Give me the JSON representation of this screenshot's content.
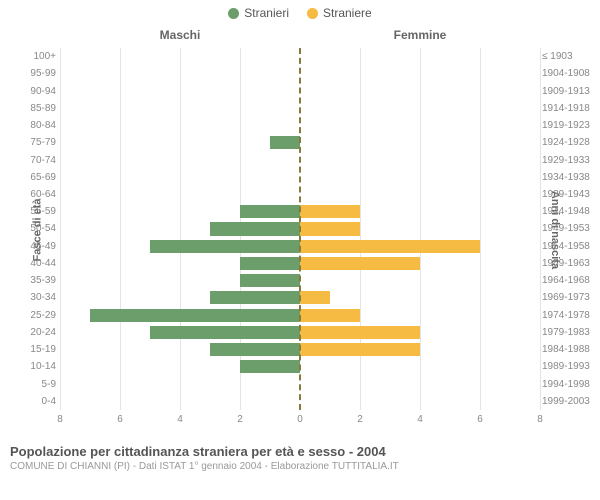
{
  "legend": {
    "male": {
      "label": "Stranieri",
      "color": "#6b9e6b"
    },
    "female": {
      "label": "Straniere",
      "color": "#f6bb42"
    }
  },
  "headers": {
    "left": "Maschi",
    "right": "Femmine"
  },
  "axes": {
    "left_label": "Fasce di età",
    "right_label": "Anni di nascita",
    "x_max": 8,
    "x_ticks_left": [
      8,
      6,
      4,
      2,
      0
    ],
    "x_ticks_right": [
      0,
      2,
      4,
      6,
      8
    ]
  },
  "grid_color": "#e4e4e4",
  "center_line_color": "#8a7a3a",
  "background": "#ffffff",
  "rows": [
    {
      "age": "100+",
      "birth": "≤ 1903",
      "m": 0,
      "f": 0
    },
    {
      "age": "95-99",
      "birth": "1904-1908",
      "m": 0,
      "f": 0
    },
    {
      "age": "90-94",
      "birth": "1909-1913",
      "m": 0,
      "f": 0
    },
    {
      "age": "85-89",
      "birth": "1914-1918",
      "m": 0,
      "f": 0
    },
    {
      "age": "80-84",
      "birth": "1919-1923",
      "m": 0,
      "f": 0
    },
    {
      "age": "75-79",
      "birth": "1924-1928",
      "m": 1,
      "f": 0
    },
    {
      "age": "70-74",
      "birth": "1929-1933",
      "m": 0,
      "f": 0
    },
    {
      "age": "65-69",
      "birth": "1934-1938",
      "m": 0,
      "f": 0
    },
    {
      "age": "60-64",
      "birth": "1939-1943",
      "m": 0,
      "f": 0
    },
    {
      "age": "55-59",
      "birth": "1944-1948",
      "m": 2,
      "f": 2
    },
    {
      "age": "50-54",
      "birth": "1949-1953",
      "m": 3,
      "f": 2
    },
    {
      "age": "45-49",
      "birth": "1954-1958",
      "m": 5,
      "f": 6
    },
    {
      "age": "40-44",
      "birth": "1959-1963",
      "m": 2,
      "f": 4
    },
    {
      "age": "35-39",
      "birth": "1964-1968",
      "m": 2,
      "f": 0
    },
    {
      "age": "30-34",
      "birth": "1969-1973",
      "m": 3,
      "f": 1
    },
    {
      "age": "25-29",
      "birth": "1974-1978",
      "m": 7,
      "f": 2
    },
    {
      "age": "20-24",
      "birth": "1979-1983",
      "m": 5,
      "f": 4
    },
    {
      "age": "15-19",
      "birth": "1984-1988",
      "m": 3,
      "f": 4
    },
    {
      "age": "10-14",
      "birth": "1989-1993",
      "m": 2,
      "f": 0
    },
    {
      "age": "5-9",
      "birth": "1994-1998",
      "m": 0,
      "f": 0
    },
    {
      "age": "0-4",
      "birth": "1999-2003",
      "m": 0,
      "f": 0
    }
  ],
  "footer": {
    "title": "Popolazione per cittadinanza straniera per età e sesso - 2004",
    "subtitle": "COMUNE DI CHIANNI (PI) - Dati ISTAT 1° gennaio 2004 - Elaborazione TUTTITALIA.IT"
  }
}
